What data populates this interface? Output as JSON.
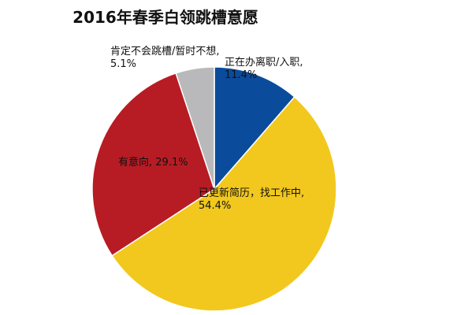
{
  "chart_data": {
    "type": "pie",
    "title": "2016年春季白领跳槽意愿",
    "categories": [
      "正在办离职/入职",
      "已更新简历，找工作中",
      "有意向",
      "肯定不会跳槽/暂时不想"
    ],
    "values": [
      11.4,
      54.4,
      29.1,
      5.1
    ],
    "value_labels": [
      "11.4%",
      "54.4%",
      "29.1%",
      "5.1%"
    ],
    "colors": [
      "#0b4b9b",
      "#f2c81e",
      "#b71c24",
      "#b9b9bb"
    ]
  }
}
